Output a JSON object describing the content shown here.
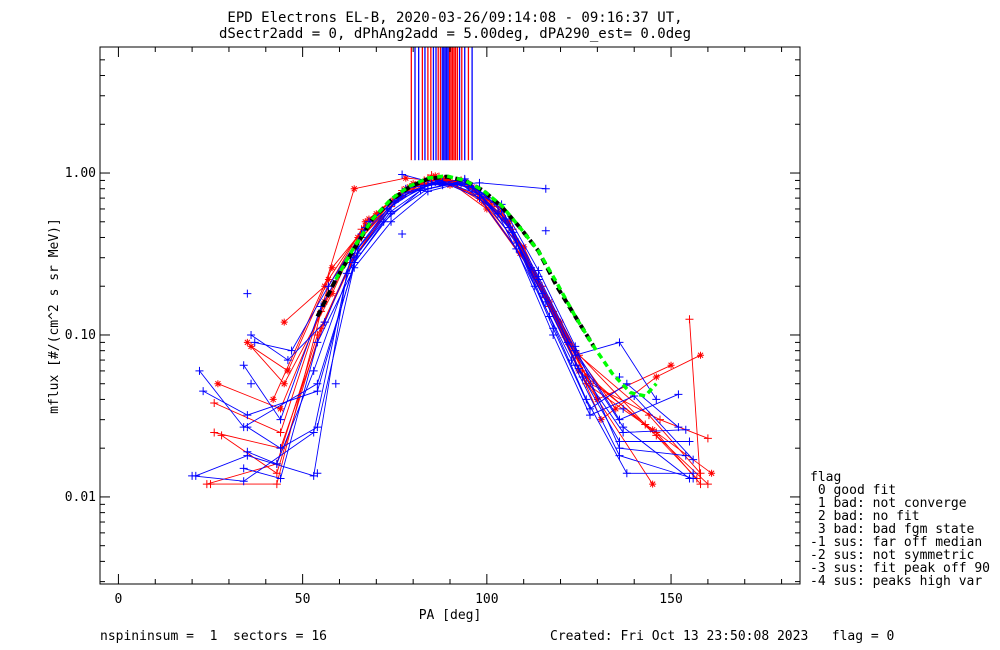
{
  "chart_data": {
    "type": "line",
    "title_lines": [
      "EPD Electrons EL-B, 2020-03-26/09:14:08 - 09:16:37 UT,",
      "dSectr2add = 0, dPhAng2add = 5.00deg, dPA290_est=   0.0deg"
    ],
    "xlabel": "PA [deg]",
    "ylabel": "mflux [#/(cm^2 s sr MeV)]",
    "xlim": [
      -5,
      185
    ],
    "ylim": [
      0.0029,
      6.0
    ],
    "yscale": "log",
    "x_ticks": [
      0,
      50,
      100,
      150
    ],
    "x_tick_labels": [
      "0",
      "50",
      "100",
      "150"
    ],
    "y_ticks": [
      0.01,
      0.1,
      1.0
    ],
    "y_tick_labels": [
      "0.01",
      "0.10",
      "1.00"
    ],
    "grid": false,
    "colors": {
      "red": "#ff0000",
      "blue": "#0000ff",
      "black": "#000000",
      "green": "#00ff00"
    },
    "red_profiles": [
      [
        [
          25,
          0.012
        ],
        [
          43,
          0.012
        ],
        [
          55,
          0.14
        ],
        [
          64,
          0.35
        ],
        [
          75,
          0.7
        ],
        [
          85,
          0.97
        ],
        [
          95,
          0.85
        ],
        [
          105,
          0.52
        ],
        [
          116,
          0.17
        ],
        [
          126,
          0.06
        ],
        [
          146,
          0.024
        ],
        [
          160,
          0.012
        ]
      ],
      [
        [
          27,
          0.05
        ],
        [
          44,
          0.035
        ],
        [
          56,
          0.16
        ],
        [
          65,
          0.4
        ],
        [
          76,
          0.72
        ],
        [
          86,
          0.96
        ],
        [
          96,
          0.82
        ],
        [
          106,
          0.5
        ],
        [
          117,
          0.16
        ],
        [
          127,
          0.055
        ],
        [
          145,
          0.026
        ],
        [
          161,
          0.014
        ]
      ],
      [
        [
          26,
          0.038
        ],
        [
          44,
          0.025
        ],
        [
          57,
          0.2
        ],
        [
          66,
          0.45
        ],
        [
          77,
          0.78
        ],
        [
          87,
          0.95
        ],
        [
          97,
          0.78
        ],
        [
          107,
          0.45
        ],
        [
          118,
          0.14
        ],
        [
          128,
          0.05
        ],
        [
          147,
          0.03
        ],
        [
          160,
          0.023
        ]
      ],
      [
        [
          35,
          0.09
        ],
        [
          45,
          0.05
        ],
        [
          58,
          0.18
        ],
        [
          67,
          0.5
        ],
        [
          78,
          0.8
        ],
        [
          88,
          0.93
        ],
        [
          98,
          0.7
        ],
        [
          108,
          0.38
        ],
        [
          120,
          0.12
        ],
        [
          130,
          0.04
        ],
        [
          150,
          0.065
        ]
      ],
      [
        [
          28,
          0.024
        ],
        [
          43,
          0.014
        ],
        [
          55,
          0.11
        ],
        [
          64,
          0.3
        ],
        [
          74,
          0.62
        ],
        [
          84,
          0.93
        ],
        [
          94,
          0.88
        ],
        [
          104,
          0.58
        ],
        [
          115,
          0.2
        ],
        [
          125,
          0.075
        ],
        [
          144,
          0.032
        ],
        [
          158,
          0.014
        ]
      ],
      [
        [
          36,
          0.085
        ],
        [
          46,
          0.06
        ],
        [
          57,
          0.22
        ],
        [
          68,
          0.52
        ],
        [
          79,
          0.82
        ],
        [
          89,
          0.9
        ],
        [
          99,
          0.66
        ],
        [
          109,
          0.32
        ],
        [
          121,
          0.1
        ],
        [
          131,
          0.03
        ],
        [
          146,
          0.055
        ],
        [
          158,
          0.075
        ]
      ],
      [
        [
          24,
          0.012
        ],
        [
          43,
          0.016
        ],
        [
          54,
          0.1
        ],
        [
          63,
          0.28
        ],
        [
          73,
          0.6
        ],
        [
          83,
          0.9
        ],
        [
          93,
          0.9
        ],
        [
          103,
          0.62
        ],
        [
          114,
          0.22
        ],
        [
          124,
          0.08
        ],
        [
          143,
          0.028
        ],
        [
          157,
          0.013
        ]
      ],
      [
        [
          45,
          0.12
        ],
        [
          56,
          0.2
        ],
        [
          64,
          0.8
        ],
        [
          78,
          0.93
        ],
        [
          90,
          0.88
        ],
        [
          100,
          0.6
        ],
        [
          112,
          0.25
        ],
        [
          125,
          0.06
        ],
        [
          145,
          0.012
        ]
      ],
      [
        [
          26,
          0.025
        ],
        [
          44,
          0.02
        ],
        [
          56,
          0.12
        ],
        [
          66,
          0.4
        ],
        [
          76,
          0.7
        ],
        [
          86,
          0.92
        ],
        [
          96,
          0.8
        ],
        [
          106,
          0.46
        ],
        [
          117,
          0.15
        ],
        [
          127,
          0.05
        ],
        [
          146,
          0.025
        ],
        [
          158,
          0.012
        ],
        [
          155,
          0.125
        ]
      ],
      [
        [
          42,
          0.04
        ],
        [
          58,
          0.26
        ],
        [
          70,
          0.56
        ],
        [
          80,
          0.86
        ],
        [
          90,
          0.84
        ],
        [
          100,
          0.7
        ],
        [
          110,
          0.35
        ],
        [
          122,
          0.09
        ],
        [
          135,
          0.035
        ]
      ]
    ],
    "blue_profiles": [
      [
        [
          20,
          0.0135
        ],
        [
          34,
          0.0125
        ],
        [
          53,
          0.025
        ],
        [
          63,
          0.3
        ],
        [
          73,
          0.6
        ],
        [
          83,
          0.84
        ],
        [
          93,
          0.86
        ],
        [
          103,
          0.56
        ],
        [
          113,
          0.2
        ],
        [
          123,
          0.07
        ],
        [
          136,
          0.018
        ],
        [
          156,
          0.013
        ]
      ],
      [
        [
          22,
          0.06
        ],
        [
          34,
          0.027
        ],
        [
          54,
          0.05
        ],
        [
          65,
          0.32
        ],
        [
          76,
          0.7
        ],
        [
          86,
          0.88
        ],
        [
          96,
          0.82
        ],
        [
          106,
          0.46
        ],
        [
          116,
          0.16
        ],
        [
          126,
          0.055
        ],
        [
          136,
          0.022
        ],
        [
          155,
          0.022
        ]
      ],
      [
        [
          23,
          0.045
        ],
        [
          35,
          0.032
        ],
        [
          54,
          0.045
        ],
        [
          64,
          0.28
        ],
        [
          74,
          0.56
        ],
        [
          84,
          0.8
        ],
        [
          94,
          0.9
        ],
        [
          104,
          0.6
        ],
        [
          114,
          0.23
        ],
        [
          124,
          0.08
        ],
        [
          136,
          0.03
        ],
        [
          152,
          0.043
        ]
      ],
      [
        [
          21,
          0.0135
        ],
        [
          35,
          0.018
        ],
        [
          53,
          0.0135
        ],
        [
          62,
          0.24
        ],
        [
          72,
          0.5
        ],
        [
          82,
          0.78
        ],
        [
          92,
          0.87
        ],
        [
          102,
          0.66
        ],
        [
          112,
          0.26
        ],
        [
          122,
          0.09
        ],
        [
          137,
          0.027
        ],
        [
          155,
          0.013
        ]
      ],
      [
        [
          34,
          0.065
        ],
        [
          44,
          0.03
        ],
        [
          55,
          0.15
        ],
        [
          66,
          0.42
        ],
        [
          77,
          0.72
        ],
        [
          87,
          0.9
        ],
        [
          97,
          0.8
        ],
        [
          107,
          0.43
        ],
        [
          117,
          0.13
        ],
        [
          127,
          0.04
        ],
        [
          138,
          0.014
        ],
        [
          156,
          0.014
        ]
      ],
      [
        [
          36,
          0.1
        ],
        [
          46,
          0.07
        ],
        [
          56,
          0.12
        ],
        [
          67,
          0.46
        ],
        [
          78,
          0.8
        ],
        [
          88,
          0.88
        ],
        [
          98,
          0.74
        ],
        [
          108,
          0.37
        ],
        [
          118,
          0.11
        ],
        [
          128,
          0.035
        ],
        [
          138,
          0.05
        ],
        [
          152,
          0.027
        ]
      ],
      [
        [
          35,
          0.027
        ],
        [
          44,
          0.02
        ],
        [
          54,
          0.027
        ],
        [
          65,
          0.34
        ],
        [
          75,
          0.66
        ],
        [
          85,
          0.86
        ],
        [
          95,
          0.85
        ],
        [
          105,
          0.52
        ],
        [
          115,
          0.18
        ],
        [
          125,
          0.062
        ],
        [
          137,
          0.025
        ],
        [
          154,
          0.026
        ]
      ],
      [
        [
          35,
          0.019
        ],
        [
          43,
          0.016
        ],
        [
          53,
          0.06
        ],
        [
          64,
          0.3
        ],
        [
          74,
          0.58
        ],
        [
          84,
          0.84
        ],
        [
          94,
          0.92
        ],
        [
          104,
          0.6
        ],
        [
          114,
          0.22
        ],
        [
          124,
          0.075
        ],
        [
          136,
          0.09
        ],
        [
          146,
          0.04
        ]
      ],
      [
        [
          37,
          0.09
        ],
        [
          47,
          0.08
        ],
        [
          57,
          0.2
        ],
        [
          68,
          0.5
        ],
        [
          78,
          0.76
        ],
        [
          88,
          0.88
        ],
        [
          98,
          0.7
        ],
        [
          108,
          0.34
        ],
        [
          118,
          0.1
        ],
        [
          128,
          0.032
        ],
        [
          140,
          0.042
        ],
        [
          156,
          0.017
        ]
      ],
      [
        [
          34,
          0.015
        ],
        [
          44,
          0.013
        ],
        [
          54,
          0.09
        ],
        [
          64,
          0.26
        ],
        [
          74,
          0.5
        ],
        [
          84,
          0.77
        ],
        [
          94,
          0.88
        ],
        [
          104,
          0.64
        ],
        [
          114,
          0.25
        ],
        [
          124,
          0.085
        ],
        [
          136,
          0.02
        ],
        [
          154,
          0.018
        ]
      ],
      [
        [
          77,
          0.98
        ],
        [
          88,
          0.84
        ],
        [
          98,
          0.87
        ],
        [
          116,
          0.8
        ]
      ]
    ],
    "blue_markers": [
      [
        54,
        0.014
      ],
      [
        59,
        0.05
      ],
      [
        36,
        0.05
      ],
      [
        35,
        0.18
      ],
      [
        77,
        0.42
      ],
      [
        116,
        0.44
      ],
      [
        136,
        0.055
      ],
      [
        124,
        0.065
      ],
      [
        137,
        0.035
      ]
    ],
    "black_profile": [
      [
        54,
        0.13
      ],
      [
        59,
        0.22
      ],
      [
        64,
        0.34
      ],
      [
        69,
        0.52
      ],
      [
        74,
        0.68
      ],
      [
        79,
        0.82
      ],
      [
        84,
        0.92
      ],
      [
        89,
        0.95
      ],
      [
        94,
        0.9
      ],
      [
        99,
        0.78
      ],
      [
        104,
        0.62
      ],
      [
        109,
        0.46
      ],
      [
        114,
        0.33
      ],
      [
        119,
        0.2
      ],
      [
        124,
        0.13
      ],
      [
        129,
        0.085
      ]
    ],
    "green_profile": [
      [
        59,
        0.22
      ],
      [
        64,
        0.35
      ],
      [
        69,
        0.52
      ],
      [
        74,
        0.69
      ],
      [
        79,
        0.83
      ],
      [
        84,
        0.93
      ],
      [
        89,
        0.96
      ],
      [
        94,
        0.9
      ],
      [
        99,
        0.78
      ],
      [
        104,
        0.63
      ],
      [
        109,
        0.46
      ],
      [
        114,
        0.33
      ],
      [
        119,
        0.21
      ],
      [
        124,
        0.13
      ],
      [
        129,
        0.085
      ],
      [
        134,
        0.058
      ],
      [
        139,
        0.044
      ],
      [
        143,
        0.042
      ],
      [
        146,
        0.05
      ]
    ],
    "top_lines": [
      {
        "x": 79.5,
        "color": "red"
      },
      {
        "x": 80.5,
        "color": "blue"
      },
      {
        "x": 81.5,
        "color": "blue"
      },
      {
        "x": 82.5,
        "color": "red"
      },
      {
        "x": 83.2,
        "color": "blue"
      },
      {
        "x": 84.0,
        "color": "red"
      },
      {
        "x": 84.8,
        "color": "red"
      },
      {
        "x": 85.5,
        "color": "blue"
      },
      {
        "x": 86.2,
        "color": "blue"
      },
      {
        "x": 86.8,
        "color": "red"
      },
      {
        "x": 87.4,
        "color": "red"
      },
      {
        "x": 87.9,
        "color": "blue"
      },
      {
        "x": 88.3,
        "color": "blue"
      },
      {
        "x": 88.7,
        "color": "blue"
      },
      {
        "x": 89.1,
        "color": "blue"
      },
      {
        "x": 89.5,
        "color": "blue"
      },
      {
        "x": 89.9,
        "color": "red"
      },
      {
        "x": 90.3,
        "color": "red"
      },
      {
        "x": 90.7,
        "color": "red"
      },
      {
        "x": 91.1,
        "color": "red"
      },
      {
        "x": 91.5,
        "color": "red"
      },
      {
        "x": 92.0,
        "color": "red"
      },
      {
        "x": 92.6,
        "color": "blue"
      },
      {
        "x": 93.2,
        "color": "red"
      },
      {
        "x": 94.0,
        "color": "blue"
      },
      {
        "x": 95.0,
        "color": "red"
      },
      {
        "x": 96.0,
        "color": "blue"
      }
    ],
    "legend": {
      "placement": "bottom-right",
      "title": "flag",
      "entries": [
        " 0 good fit",
        " 1 bad: not converge",
        " 2 bad: no fit",
        " 3 bad: bad fgm state",
        "-1 sus: far off median",
        "-2 sus: not symmetric",
        "-3 sus: fit peak off 90",
        "-4 sus: peaks high var"
      ]
    },
    "footer_left": "nspininsum =  1  sectors = 16",
    "footer_right": "Created: Fri Oct 13 23:50:08 2023   flag = 0"
  }
}
